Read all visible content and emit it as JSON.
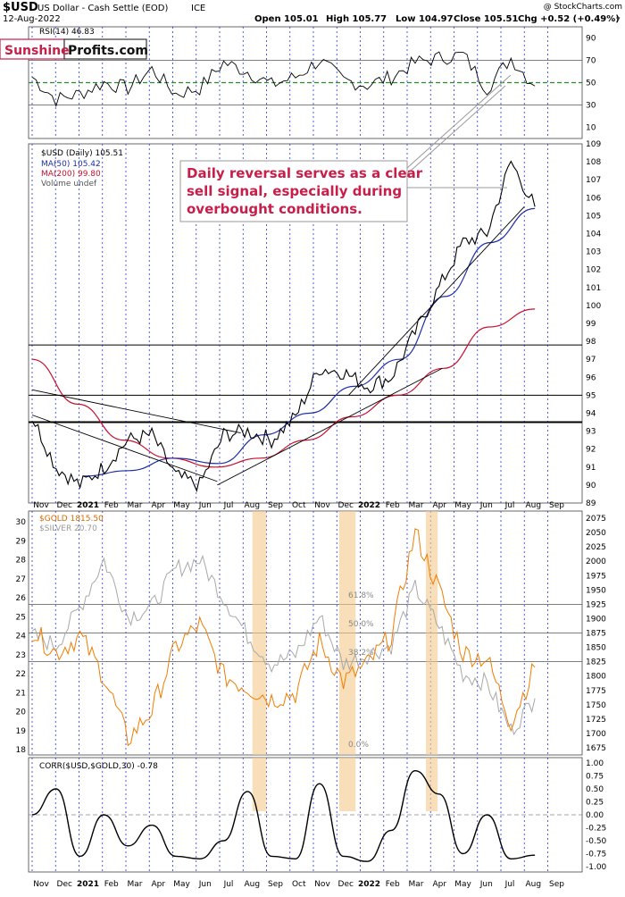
{
  "header": {
    "symbol": "$USD",
    "name": "US Dollar - Cash Settle (EOD)",
    "exchange": "ICE",
    "date": "12-Aug-2022",
    "open": "Open 105.01",
    "high": "High 105.77",
    "low": "Low 104.97",
    "close": "Close 105.51",
    "chg": "Chg +0.52 (+0.49%)",
    "credit": "@ StockCharts.com"
  },
  "logo": {
    "part1": "Sunshine",
    "part2": "Profits.com"
  },
  "annotation": {
    "lines": [
      "Daily reversal serves as a clear",
      "sell signal, especially during",
      "overbought conditions."
    ]
  },
  "x_labels": [
    "Nov",
    "Dec",
    "2021",
    "Feb",
    "Mar",
    "Apr",
    "May",
    "Jun",
    "Jul",
    "Aug",
    "Sep",
    "Oct",
    "Nov",
    "Dec",
    "2022",
    "Feb",
    "Mar",
    "Apr",
    "May",
    "Jun",
    "Jul",
    "Aug",
    "Sep"
  ],
  "colors": {
    "usd_price": "#000000",
    "ma50": "#1f2fa3",
    "ma200": "#c8102e",
    "gold": "#f07d00",
    "silver": "#a8a8a8",
    "rsi_midline": "#2a8a2a",
    "annotation_text": "#c81e4a",
    "highlight": "#f3c98b",
    "grid_dotted": "#2233ee"
  },
  "chart_data": [
    {
      "type": "line",
      "panel": "rsi",
      "title": "RSI(14) 46.83",
      "series": [
        {
          "name": "RSI(14)",
          "x": [
            "Nov",
            "Dec",
            "2021",
            "Feb",
            "Mar",
            "Apr",
            "May",
            "Jun",
            "Jul",
            "Aug",
            "Sep",
            "Oct",
            "Nov",
            "Dec",
            "2022",
            "Feb",
            "Mar",
            "Apr",
            "May",
            "Jun",
            "Jul",
            "Aug"
          ],
          "values": [
            55,
            35,
            40,
            50,
            45,
            62,
            40,
            45,
            68,
            60,
            48,
            55,
            70,
            52,
            48,
            55,
            68,
            72,
            75,
            45,
            72,
            47
          ]
        }
      ],
      "ylim": [
        0,
        100
      ],
      "yticks": [
        10,
        30,
        50,
        70,
        90
      ],
      "reference_lines": [
        30,
        50,
        70
      ]
    },
    {
      "type": "line",
      "panel": "usd",
      "legend": [
        "$USD (Daily) 105.51",
        "MA(50) 105.42",
        "MA(200) 99.80",
        "Volume undef"
      ],
      "series": [
        {
          "name": "$USD (Daily)",
          "x": [
            "Nov",
            "Dec",
            "2021",
            "Feb",
            "Mar",
            "Apr",
            "May",
            "Jun",
            "Jul",
            "Aug",
            "Sep",
            "Oct",
            "Nov",
            "Dec",
            "2022",
            "Feb",
            "Mar",
            "Apr",
            "May",
            "Jun",
            "Jul",
            "Aug"
          ],
          "values": [
            93.8,
            91.0,
            90.0,
            91.0,
            92.5,
            92.8,
            90.5,
            90.0,
            92.8,
            93.0,
            92.5,
            93.8,
            96.5,
            96.3,
            95.5,
            96.0,
            98.5,
            101.0,
            103.5,
            104.0,
            108.0,
            105.5
          ]
        },
        {
          "name": "MA(50)",
          "x": [
            "Jan",
            "Mar",
            "May",
            "Jul",
            "Sep",
            "Nov",
            "Jan",
            "Mar",
            "May",
            "Jul",
            "Aug"
          ],
          "values": [
            90.5,
            90.8,
            91.5,
            91.2,
            92.8,
            94.0,
            95.5,
            97.0,
            100.5,
            103.5,
            105.4
          ]
        },
        {
          "name": "MA(200)",
          "x": [
            "Nov",
            "Jan",
            "Mar",
            "May",
            "Jul",
            "Sep",
            "Nov",
            "Jan",
            "Mar",
            "May",
            "Jul",
            "Aug"
          ],
          "values": [
            97.0,
            94.5,
            92.5,
            91.5,
            91.0,
            91.5,
            92.5,
            93.8,
            95.0,
            96.5,
            98.8,
            99.8
          ]
        }
      ],
      "ylim": [
        89,
        109
      ],
      "yticks": [
        89,
        90,
        91,
        92,
        93,
        94,
        95,
        96,
        97,
        98,
        99,
        100,
        101,
        102,
        103,
        104,
        105,
        106,
        107,
        108,
        109
      ],
      "horizontal_lines": [
        93.5,
        95,
        97.8
      ]
    },
    {
      "type": "line",
      "panel": "gold-silver",
      "legend": [
        "$GOLD 1815.50",
        "$SILVER 20.70"
      ],
      "series": [
        {
          "name": "$GOLD",
          "axis": "right",
          "x": [
            "Nov",
            "Dec",
            "2021",
            "Feb",
            "Mar",
            "Apr",
            "May",
            "Jun",
            "Jul",
            "Aug",
            "Sep",
            "Oct",
            "Nov",
            "Dec",
            "2022",
            "Feb",
            "Mar",
            "Apr",
            "May",
            "Jun",
            "Jul",
            "Aug"
          ],
          "values": [
            1880,
            1840,
            1870,
            1800,
            1690,
            1740,
            1850,
            1890,
            1800,
            1780,
            1760,
            1770,
            1860,
            1790,
            1820,
            1870,
            2050,
            1950,
            1840,
            1830,
            1720,
            1815
          ]
        },
        {
          "name": "$SILVER",
          "axis": "left",
          "x": [
            "Nov",
            "Dec",
            "2021",
            "Feb",
            "Mar",
            "Apr",
            "May",
            "Jun",
            "Jul",
            "Aug",
            "Sep",
            "Oct",
            "Nov",
            "Dec",
            "2022",
            "Feb",
            "Mar",
            "Apr",
            "May",
            "Jun",
            "Jul",
            "Aug"
          ],
          "values": [
            24.0,
            23.5,
            25.5,
            28.0,
            25.0,
            25.5,
            27.5,
            28.0,
            26.0,
            24.0,
            22.5,
            23.0,
            25.0,
            22.5,
            23.0,
            23.5,
            26.5,
            24.5,
            22.0,
            21.5,
            19.0,
            20.7
          ]
        }
      ],
      "left_yticks": [
        18,
        19,
        20,
        21,
        22,
        23,
        24,
        25,
        26,
        27,
        28,
        29,
        30
      ],
      "right_yticks": [
        1675,
        1700,
        1725,
        1750,
        1775,
        1800,
        1825,
        1850,
        1875,
        1900,
        1925,
        1950,
        1975,
        2000,
        2025,
        2050,
        2075
      ],
      "fib_labels": [
        "61.8%",
        "50.0%",
        "38.2%",
        "0.0%"
      ]
    },
    {
      "type": "line",
      "panel": "correlation",
      "title": "CORR($USD,$GOLD,30) -0.78",
      "series": [
        {
          "name": "CORR($USD,$GOLD,30)",
          "x": [
            "Nov",
            "Dec",
            "2021",
            "Feb",
            "Mar",
            "Apr",
            "May",
            "Jun",
            "Jul",
            "Aug",
            "Sep",
            "Oct",
            "Nov",
            "Dec",
            "2022",
            "Feb",
            "Mar",
            "Apr",
            "May",
            "Jun",
            "Jul",
            "Aug"
          ],
          "values": [
            0.0,
            0.5,
            -0.8,
            0.0,
            -0.6,
            -0.2,
            -0.8,
            -0.85,
            -0.5,
            0.45,
            -0.8,
            -0.85,
            0.6,
            -0.8,
            -0.9,
            -0.3,
            0.85,
            0.4,
            -0.75,
            0.0,
            -0.85,
            -0.78
          ]
        }
      ],
      "ylim": [
        -1.0,
        1.0
      ],
      "yticks": [
        -1.0,
        -0.75,
        -0.5,
        -0.25,
        0.0,
        0.25,
        0.5,
        0.75,
        1.0
      ],
      "reference_lines": [
        0.0
      ]
    }
  ]
}
